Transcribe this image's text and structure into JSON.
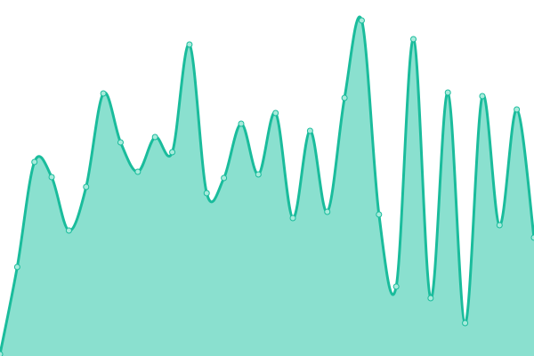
{
  "chart_data": {
    "type": "area",
    "title": "",
    "xlabel": "",
    "ylabel": "",
    "grid": false,
    "legend": "none",
    "ylim": [
      0,
      400
    ],
    "x": [
      0,
      1,
      2,
      3,
      4,
      5,
      6,
      7,
      8,
      9,
      10,
      11,
      12,
      13,
      14,
      15,
      16,
      17,
      18,
      19,
      20,
      21,
      22,
      23,
      24,
      25,
      26,
      27,
      28,
      29,
      30,
      31
    ],
    "series": [
      {
        "values": [
          2,
          100,
          218,
          201,
          141,
          190,
          295,
          240,
          207,
          246,
          229,
          350,
          183,
          200,
          261,
          204,
          273,
          155,
          253,
          162,
          290,
          377,
          159,
          78,
          356,
          65,
          296,
          37,
          292,
          147,
          277,
          133
        ]
      }
    ],
    "colors": {
      "line": "#1abc9c",
      "fill": "#8ae0cf",
      "point_fill": "#a8ebdc"
    }
  }
}
